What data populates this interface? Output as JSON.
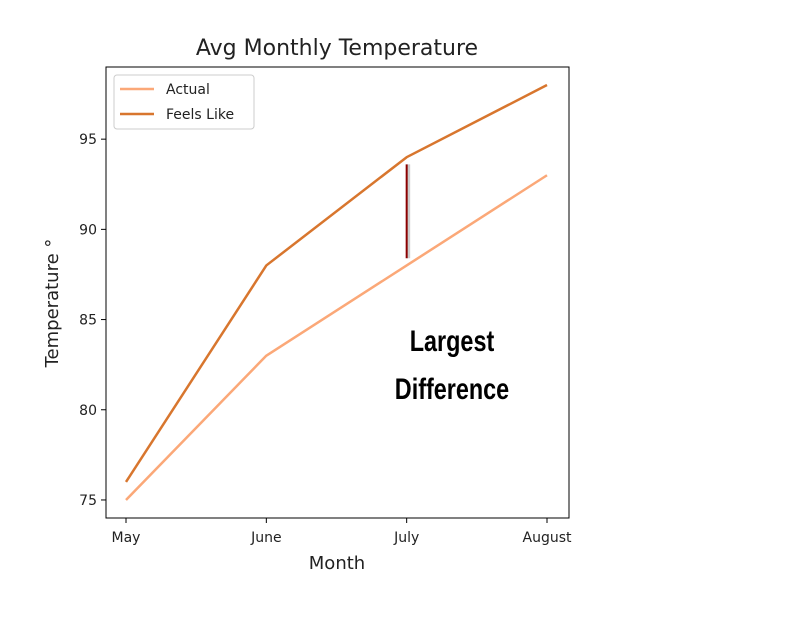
{
  "chart_data": {
    "type": "line",
    "title": "Avg Monthly Temperature",
    "xlabel": "Month",
    "ylabel": "Temperature °",
    "categories": [
      "May",
      "June",
      "July",
      "August"
    ],
    "series": [
      {
        "name": "Actual",
        "values": [
          75,
          83,
          88,
          93
        ],
        "color": "#fba878"
      },
      {
        "name": "Feels Like",
        "values": [
          76,
          88,
          94,
          98
        ],
        "color": "#d8762e"
      }
    ],
    "yticks": [
      75,
      80,
      85,
      90,
      95
    ],
    "ylim": [
      74,
      99
    ],
    "grid": false,
    "legend_position": "top-left",
    "annotation": {
      "lines": [
        "Largest",
        "Difference"
      ],
      "category": "July",
      "from": 88.4,
      "to": 93.6,
      "color": "#8b0000"
    }
  }
}
